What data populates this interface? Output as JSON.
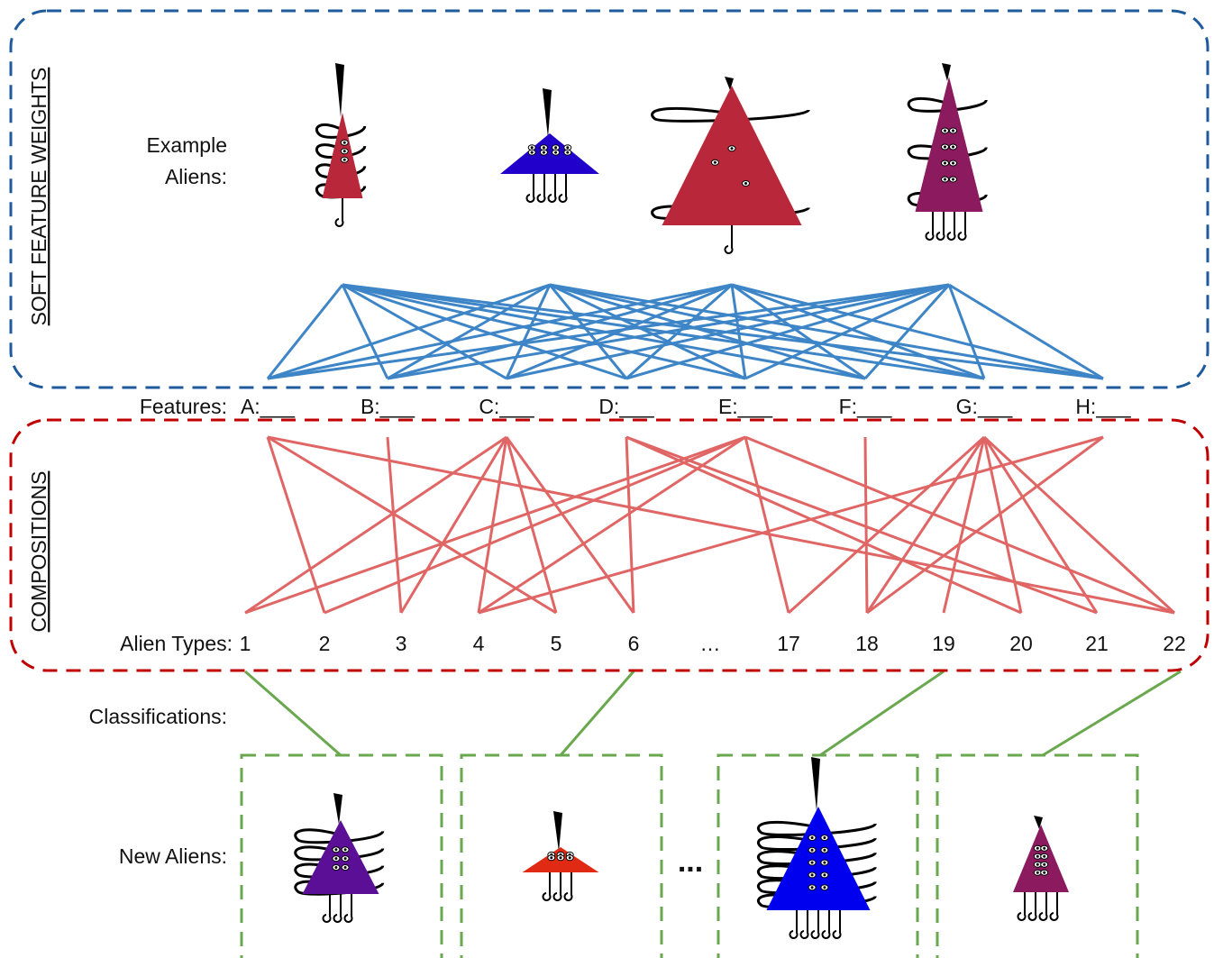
{
  "sections": {
    "soft_feature_weights": "SOFT FEATURE WEIGHTS",
    "compositions": "COMPOSITIONS"
  },
  "example_aliens_label": [
    "Example",
    "Aliens:"
  ],
  "features_label": "Features:",
  "features": [
    "A:___",
    "B:___",
    "C:___",
    "D:___",
    "E:___",
    "F:___",
    "G:___",
    "H:___"
  ],
  "alien_types_label": "Alien Types:",
  "alien_types": [
    "1",
    "2",
    "3",
    "4",
    "5",
    "6",
    "…",
    "17",
    "18",
    "19",
    "20",
    "21",
    "22"
  ],
  "classifications_label": "Classifications:",
  "new_aliens_label": "New Aliens:",
  "ellipsis": "..."
}
